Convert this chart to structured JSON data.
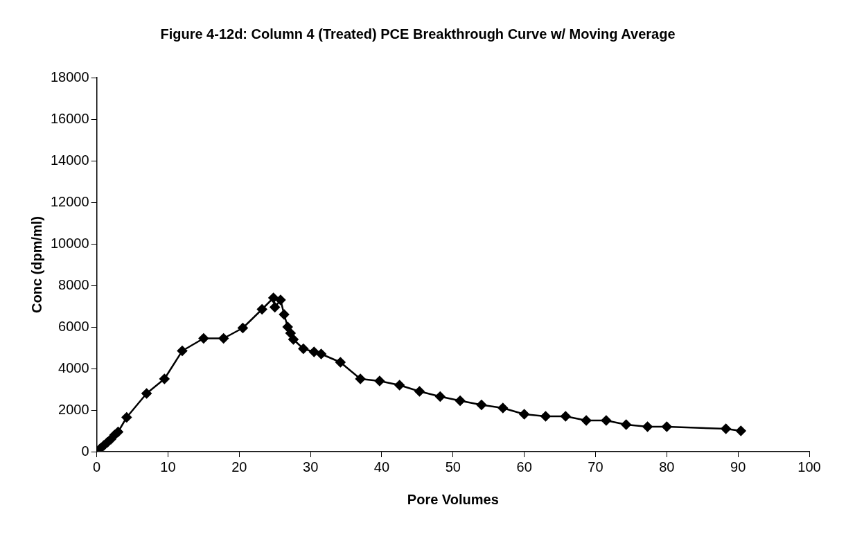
{
  "chart_data": {
    "type": "line",
    "title": "Figure 4-12d: Column 4 (Treated) PCE Breakthrough Curve w/ Moving Average",
    "xlabel": "Pore Volumes",
    "ylabel": "Conc (dpm/ml)",
    "x": [
      0,
      0.5,
      1,
      1.5,
      2,
      2.5,
      3,
      4.2,
      7,
      9.5,
      12,
      15,
      17.8,
      20.5,
      23.2,
      24.8,
      25,
      25.8,
      26.3,
      26.8,
      27.2,
      27.6,
      29,
      30.5,
      31.5,
      34.2,
      37,
      39.7,
      42.5,
      45.3,
      48.2,
      51,
      54,
      57,
      60,
      63,
      65.8,
      68.7,
      71.5,
      74.3,
      77.3,
      80,
      88.3,
      90.4
    ],
    "series": [
      {
        "color": "#000000",
        "values": [
          0,
          150,
          300,
          450,
          600,
          800,
          950,
          1650,
          2800,
          3500,
          4850,
          5450,
          5450,
          5950,
          6850,
          7400,
          6950,
          7300,
          6600,
          6000,
          5700,
          5400,
          4950,
          4800,
          4700,
          4300,
          3500,
          3400,
          3200,
          2900,
          2650,
          2450,
          2250,
          2100,
          1800,
          1700,
          1700,
          1500,
          1500,
          1300,
          1200,
          1200,
          1100,
          1000
        ]
      }
    ],
    "xlim": [
      0,
      100
    ],
    "xticks": [
      0,
      10,
      20,
      30,
      40,
      50,
      60,
      70,
      80,
      90,
      100
    ],
    "ylim": [
      0,
      18000
    ],
    "yticks": [
      0,
      2000,
      4000,
      6000,
      8000,
      10000,
      12000,
      14000,
      16000,
      18000
    ],
    "grid": false,
    "legend": false,
    "marker": "diamond",
    "line_style": "solid"
  }
}
